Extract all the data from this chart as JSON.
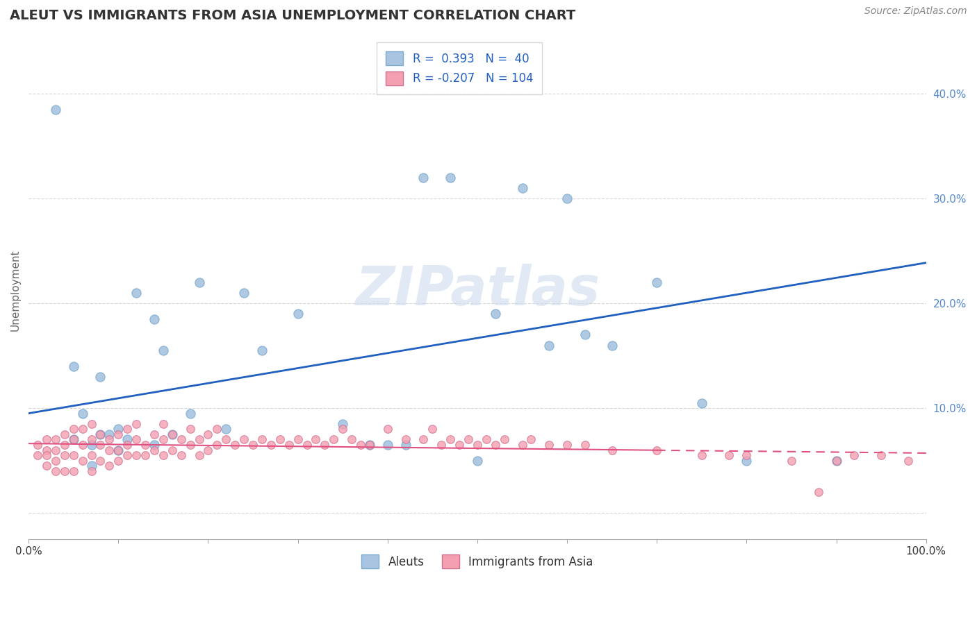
{
  "title": "ALEUT VS IMMIGRANTS FROM ASIA UNEMPLOYMENT CORRELATION CHART",
  "source": "Source: ZipAtlas.com",
  "ylabel": "Unemployment",
  "ytick_values": [
    0,
    0.1,
    0.2,
    0.3,
    0.4
  ],
  "ytick_labels": [
    "",
    "10.0%",
    "20.0%",
    "30.0%",
    "40.0%"
  ],
  "xlim": [
    0,
    1.0
  ],
  "ylim": [
    -0.025,
    0.45
  ],
  "aleuts_R": 0.393,
  "aleuts_N": 40,
  "asia_R": -0.207,
  "asia_N": 104,
  "aleuts_color": "#a8c4e0",
  "asia_color": "#f4a0b0",
  "aleuts_edge_color": "#7aaad0",
  "asia_edge_color": "#d07090",
  "aleuts_line_color": "#2060c0",
  "asia_line_color": "#e05080",
  "legend_box_aleuts": "#a8c4e0",
  "legend_box_asia": "#f4a0b0",
  "watermark": "ZIPatlas",
  "background_color": "#ffffff",
  "grid_color": "#cccccc",
  "aleuts_x": [
    0.03,
    0.05,
    0.05,
    0.06,
    0.07,
    0.07,
    0.08,
    0.08,
    0.09,
    0.1,
    0.1,
    0.11,
    0.12,
    0.14,
    0.14,
    0.15,
    0.16,
    0.18,
    0.19,
    0.22,
    0.24,
    0.26,
    0.3,
    0.35,
    0.38,
    0.4,
    0.42,
    0.44,
    0.47,
    0.5,
    0.52,
    0.55,
    0.58,
    0.6,
    0.62,
    0.65,
    0.7,
    0.75,
    0.8,
    0.9
  ],
  "aleuts_y": [
    0.385,
    0.07,
    0.14,
    0.095,
    0.065,
    0.045,
    0.075,
    0.13,
    0.075,
    0.06,
    0.08,
    0.07,
    0.21,
    0.065,
    0.185,
    0.155,
    0.075,
    0.095,
    0.22,
    0.08,
    0.21,
    0.155,
    0.19,
    0.085,
    0.065,
    0.065,
    0.065,
    0.32,
    0.32,
    0.05,
    0.19,
    0.31,
    0.16,
    0.3,
    0.17,
    0.16,
    0.22,
    0.105,
    0.05,
    0.05
  ],
  "asia_x": [
    0.01,
    0.01,
    0.02,
    0.02,
    0.02,
    0.02,
    0.03,
    0.03,
    0.03,
    0.03,
    0.04,
    0.04,
    0.04,
    0.04,
    0.05,
    0.05,
    0.05,
    0.05,
    0.06,
    0.06,
    0.06,
    0.07,
    0.07,
    0.07,
    0.07,
    0.08,
    0.08,
    0.08,
    0.09,
    0.09,
    0.09,
    0.1,
    0.1,
    0.1,
    0.11,
    0.11,
    0.11,
    0.12,
    0.12,
    0.12,
    0.13,
    0.13,
    0.14,
    0.14,
    0.15,
    0.15,
    0.15,
    0.16,
    0.16,
    0.17,
    0.17,
    0.18,
    0.18,
    0.19,
    0.19,
    0.2,
    0.2,
    0.21,
    0.21,
    0.22,
    0.23,
    0.24,
    0.25,
    0.26,
    0.27,
    0.28,
    0.29,
    0.3,
    0.31,
    0.32,
    0.33,
    0.34,
    0.35,
    0.36,
    0.37,
    0.38,
    0.4,
    0.42,
    0.44,
    0.45,
    0.46,
    0.47,
    0.48,
    0.49,
    0.5,
    0.51,
    0.52,
    0.53,
    0.55,
    0.56,
    0.58,
    0.6,
    0.62,
    0.65,
    0.7,
    0.75,
    0.78,
    0.8,
    0.85,
    0.88,
    0.9,
    0.92,
    0.95,
    0.98
  ],
  "asia_y": [
    0.065,
    0.055,
    0.07,
    0.06,
    0.055,
    0.045,
    0.07,
    0.06,
    0.05,
    0.04,
    0.075,
    0.065,
    0.055,
    0.04,
    0.08,
    0.07,
    0.055,
    0.04,
    0.08,
    0.065,
    0.05,
    0.085,
    0.07,
    0.055,
    0.04,
    0.075,
    0.065,
    0.05,
    0.07,
    0.06,
    0.045,
    0.075,
    0.06,
    0.05,
    0.08,
    0.065,
    0.055,
    0.085,
    0.07,
    0.055,
    0.065,
    0.055,
    0.075,
    0.06,
    0.085,
    0.07,
    0.055,
    0.075,
    0.06,
    0.07,
    0.055,
    0.08,
    0.065,
    0.07,
    0.055,
    0.075,
    0.06,
    0.08,
    0.065,
    0.07,
    0.065,
    0.07,
    0.065,
    0.07,
    0.065,
    0.07,
    0.065,
    0.07,
    0.065,
    0.07,
    0.065,
    0.07,
    0.08,
    0.07,
    0.065,
    0.065,
    0.08,
    0.07,
    0.07,
    0.08,
    0.065,
    0.07,
    0.065,
    0.07,
    0.065,
    0.07,
    0.065,
    0.07,
    0.065,
    0.07,
    0.065,
    0.065,
    0.065,
    0.06,
    0.06,
    0.055,
    0.055,
    0.055,
    0.05,
    0.02,
    0.05,
    0.055,
    0.055,
    0.05
  ]
}
